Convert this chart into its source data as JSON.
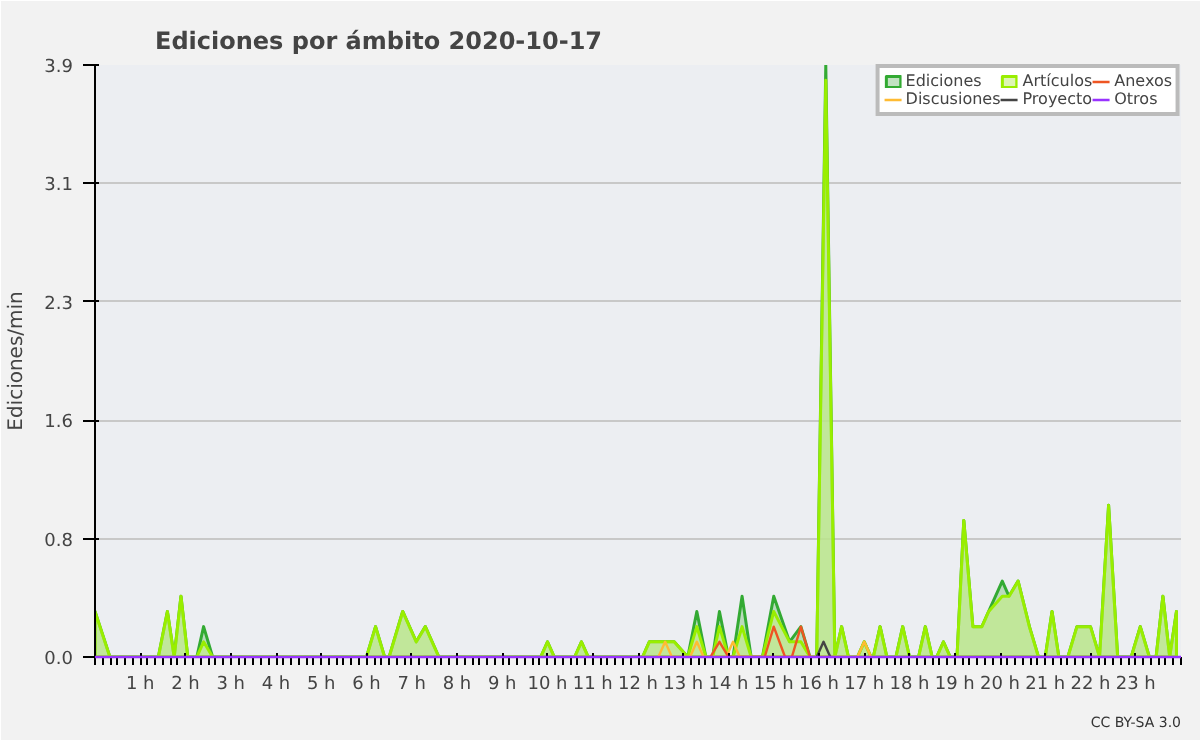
{
  "chart_data": {
    "type": "line",
    "title": "Ediciones por ámbito  2020-10-17",
    "ylabel": "Ediciones/min",
    "annotations": [
      "CC BY-SA 3.0"
    ],
    "x": [
      0,
      0.33,
      1.4,
      1.6,
      1.75,
      1.9,
      2.05,
      2.25,
      2.4,
      2.6,
      6.0,
      6.2,
      6.4,
      6.5,
      6.8,
      7.1,
      7.3,
      7.6,
      9.85,
      10.0,
      10.15,
      10.6,
      10.75,
      10.9,
      12.1,
      12.25,
      12.8,
      13.1,
      13.3,
      13.5,
      13.65,
      13.8,
      14.0,
      14.1,
      14.3,
      14.5,
      14.75,
      15.0,
      15.35,
      15.6,
      15.8,
      15.95,
      16.15,
      16.35,
      16.5,
      16.65,
      16.85,
      17.0,
      17.15,
      17.2,
      17.35,
      17.5,
      17.7,
      17.85,
      18.0,
      18.2,
      18.35,
      18.5,
      18.6,
      18.75,
      18.9,
      19.05,
      19.2,
      19.4,
      19.6,
      19.75,
      20.05,
      20.2,
      20.4,
      20.65,
      20.85,
      21.0,
      21.15,
      21.3,
      21.5,
      21.7,
      22.0,
      22.2,
      22.4,
      22.6,
      22.9,
      23.1,
      23.3,
      23.45,
      23.6,
      23.75,
      23.9
    ],
    "series": [
      {
        "name": "Ediciones",
        "type": "area",
        "color": "#33aa33",
        "values": [
          0.3,
          0,
          0,
          0.3,
          0,
          0.4,
          0,
          0,
          0.2,
          0,
          0,
          0.2,
          0,
          0,
          0.3,
          0.1,
          0.2,
          0,
          0,
          0.1,
          0,
          0,
          0.1,
          0,
          0,
          0.1,
          0.1,
          0,
          0.3,
          0,
          0,
          0.3,
          0,
          0,
          0.4,
          0,
          0,
          0.4,
          0.1,
          0.2,
          0,
          0,
          3.9,
          0,
          0.2,
          0,
          0,
          0.1,
          0,
          0,
          0.2,
          0,
          0,
          0.2,
          0,
          0,
          0.2,
          0,
          0,
          0.1,
          0,
          0,
          0.9,
          0.2,
          0.2,
          0.3,
          0.5,
          0.4,
          0.5,
          0.2,
          0,
          0,
          0.3,
          0,
          0,
          0.2,
          0.2,
          0,
          1.0,
          0,
          0,
          0.2,
          0,
          0,
          0.4,
          0,
          0.3
        ]
      },
      {
        "name": "Discusiones",
        "color": "#ffbb33",
        "x": [
          12.45,
          12.6,
          12.75,
          13.15,
          13.3,
          13.45,
          13.95,
          14.1,
          14.25,
          16.85,
          17.0,
          17.15
        ],
        "values": [
          0,
          0.1,
          0,
          0,
          0.1,
          0,
          0,
          0.1,
          0,
          0,
          0.1,
          0
        ]
      },
      {
        "name": "Artículos",
        "type": "area",
        "color": "#99ee00",
        "x": [
          0,
          0.33,
          1.4,
          1.6,
          1.75,
          1.9,
          2.05,
          2.25,
          2.4,
          2.6,
          6.0,
          6.2,
          6.4,
          6.5,
          6.8,
          7.1,
          7.3,
          7.6,
          9.85,
          10.0,
          10.15,
          10.6,
          10.75,
          10.9,
          12.1,
          12.25,
          12.8,
          13.1,
          13.3,
          13.5,
          13.65,
          13.8,
          14.0,
          14.1,
          14.3,
          14.5,
          14.75,
          15.0,
          15.35,
          15.6,
          15.8,
          15.95,
          16.15,
          16.35,
          16.5,
          16.65,
          16.85,
          17.0,
          17.15,
          17.2,
          17.35,
          17.5,
          17.7,
          17.85,
          18.0,
          18.2,
          18.35,
          18.5,
          18.6,
          18.75,
          18.9,
          19.05,
          19.2,
          19.4,
          19.6,
          19.75,
          20.05,
          20.2,
          20.4,
          20.65,
          20.85,
          21.0,
          21.15,
          21.3,
          21.5,
          21.7,
          22.0,
          22.2,
          22.4,
          22.6,
          22.9,
          23.1,
          23.3,
          23.45,
          23.6,
          23.75,
          23.9
        ],
        "values": [
          0.3,
          0,
          0,
          0.3,
          0,
          0.4,
          0,
          0,
          0.1,
          0,
          0,
          0.2,
          0,
          0,
          0.3,
          0.1,
          0.2,
          0,
          0,
          0.1,
          0,
          0,
          0.1,
          0,
          0,
          0.1,
          0.1,
          0,
          0.2,
          0,
          0,
          0.2,
          0,
          0,
          0.2,
          0,
          0,
          0.3,
          0.1,
          0.1,
          0,
          0,
          3.8,
          0,
          0.2,
          0,
          0,
          0.1,
          0,
          0,
          0.2,
          0,
          0,
          0.2,
          0,
          0,
          0.2,
          0,
          0,
          0.1,
          0,
          0,
          0.9,
          0.2,
          0.2,
          0.3,
          0.4,
          0.4,
          0.5,
          0.2,
          0,
          0,
          0.3,
          0,
          0,
          0.2,
          0.2,
          0,
          1.0,
          0,
          0,
          0.2,
          0,
          0,
          0.4,
          0,
          0.3
        ]
      },
      {
        "name": "Proyecto",
        "color": "#444444",
        "x": [
          15.95,
          16.1,
          16.25
        ],
        "values": [
          0,
          0.1,
          0
        ]
      },
      {
        "name": "Anexos",
        "color": "#ee5522",
        "x": [
          13.6,
          13.8,
          14.0,
          14.8,
          15.0,
          15.25,
          15.4,
          15.6,
          15.8
        ],
        "values": [
          0,
          0.1,
          0,
          0,
          0.2,
          0,
          0,
          0.2,
          0
        ]
      },
      {
        "name": "Otros",
        "color": "#9933ff",
        "x": [
          0,
          24
        ],
        "values": [
          0,
          0
        ]
      }
    ],
    "xlim": [
      0,
      24
    ],
    "xticks": [
      {
        "value": 1,
        "label": "1 h"
      },
      {
        "value": 2,
        "label": "2 h"
      },
      {
        "value": 3,
        "label": "3 h"
      },
      {
        "value": 4,
        "label": "4 h"
      },
      {
        "value": 5,
        "label": "5 h"
      },
      {
        "value": 6,
        "label": "6 h"
      },
      {
        "value": 7,
        "label": "7 h"
      },
      {
        "value": 8,
        "label": "8 h"
      },
      {
        "value": 9,
        "label": "9 h"
      },
      {
        "value": 10,
        "label": "10 h"
      },
      {
        "value": 11,
        "label": "11 h"
      },
      {
        "value": 12,
        "label": "12 h"
      },
      {
        "value": 13,
        "label": "13 h"
      },
      {
        "value": 14,
        "label": "14 h"
      },
      {
        "value": 15,
        "label": "15 h"
      },
      {
        "value": 16,
        "label": "16 h"
      },
      {
        "value": 17,
        "label": "17 h"
      },
      {
        "value": 18,
        "label": "18 h"
      },
      {
        "value": 19,
        "label": "19 h"
      },
      {
        "value": 20,
        "label": "20 h"
      },
      {
        "value": 21,
        "label": "21 h"
      },
      {
        "value": 22,
        "label": "22 h"
      },
      {
        "value": 23,
        "label": "23 h"
      }
    ],
    "ylim": [
      0,
      3.9
    ],
    "yticks": [
      {
        "value": 0,
        "label": "0.0"
      },
      {
        "value": 0.78,
        "label": "0.8"
      },
      {
        "value": 1.56,
        "label": "1.6"
      },
      {
        "value": 2.34,
        "label": "2.3"
      },
      {
        "value": 3.12,
        "label": "3.1"
      },
      3.9
    ],
    "grid": "y",
    "legend": "top right"
  }
}
